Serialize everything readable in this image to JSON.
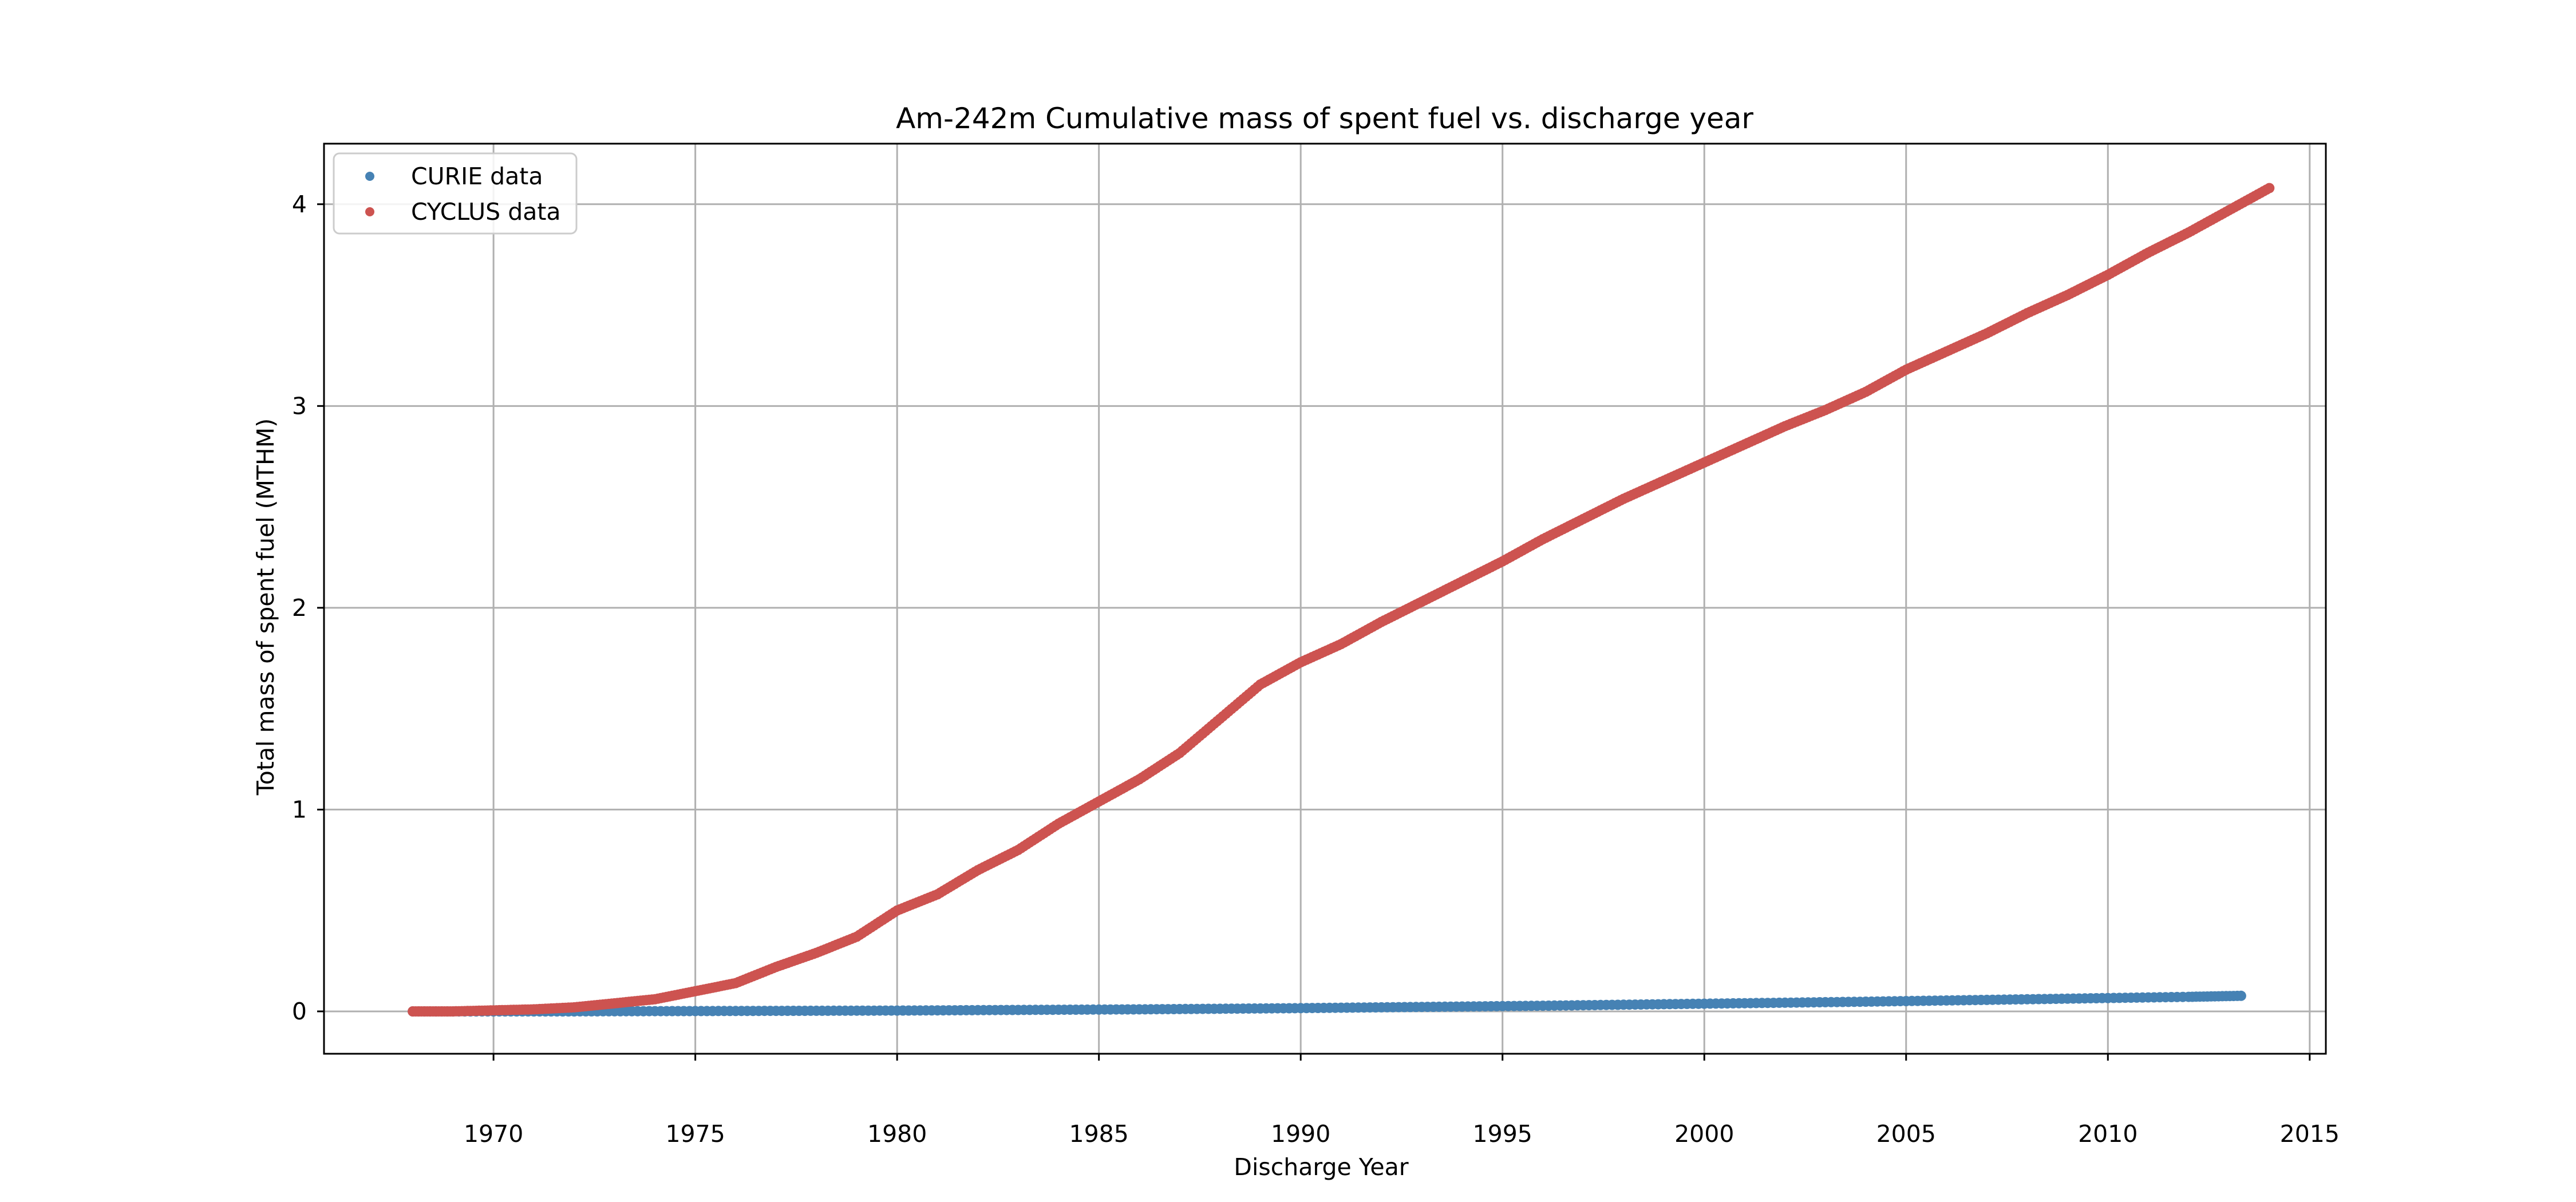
{
  "chart_data": {
    "type": "scatter",
    "title": "Am-242m Cumulative mass of spent fuel vs. discharge year",
    "xlabel": "Discharge Year",
    "ylabel": "Total mass of spent fuel (MTHM)",
    "xlim": [
      1965.8,
      2015.4
    ],
    "ylim": [
      -0.21,
      4.3
    ],
    "xticks": [
      1970,
      1975,
      1980,
      1985,
      1990,
      1995,
      2000,
      2005,
      2010,
      2015
    ],
    "xtick_labels": [
      "1970",
      "1975",
      "1980",
      "1985",
      "1990",
      "1995",
      "2000",
      "2005",
      "2010",
      "2015"
    ],
    "yticks": [
      0,
      1,
      2,
      3,
      4
    ],
    "ytick_labels": [
      "0",
      "1",
      "2",
      "3",
      "4"
    ],
    "grid": true,
    "legend_position": "top-left",
    "series": [
      {
        "name": "CURIE data",
        "color": "#4682b4",
        "x": [
          1968.0,
          1970.0,
          1972.0,
          1974.0,
          1976.0,
          1978.0,
          1980.0,
          1982.0,
          1984.0,
          1986.0,
          1988.0,
          1990.0,
          1992.0,
          1994.0,
          1996.0,
          1998.0,
          2000.0,
          2002.0,
          2004.0,
          2006.0,
          2008.0,
          2010.0,
          2012.0,
          2013.3
        ],
        "y": [
          0.0,
          0.0,
          0.0,
          0.001,
          0.002,
          0.003,
          0.004,
          0.006,
          0.008,
          0.01,
          0.013,
          0.016,
          0.02,
          0.024,
          0.028,
          0.033,
          0.038,
          0.043,
          0.048,
          0.054,
          0.06,
          0.066,
          0.072,
          0.077
        ]
      },
      {
        "name": "CYCLUS data",
        "color": "#cd5350",
        "x": [
          1968.0,
          1969.0,
          1970.0,
          1971.0,
          1972.0,
          1973.0,
          1974.0,
          1975.0,
          1976.0,
          1977.0,
          1978.0,
          1979.0,
          1980.0,
          1981.0,
          1982.0,
          1983.0,
          1984.0,
          1985.0,
          1986.0,
          1987.0,
          1988.0,
          1989.0,
          1990.0,
          1991.0,
          1992.0,
          1993.0,
          1994.0,
          1995.0,
          1996.0,
          1997.0,
          1998.0,
          1999.0,
          2000.0,
          2001.0,
          2002.0,
          2003.0,
          2004.0,
          2005.0,
          2006.0,
          2007.0,
          2008.0,
          2009.0,
          2010.0,
          2011.0,
          2012.0,
          2013.0,
          2014.0
        ],
        "y": [
          0.0,
          0.0,
          0.005,
          0.01,
          0.02,
          0.04,
          0.06,
          0.1,
          0.14,
          0.22,
          0.29,
          0.37,
          0.5,
          0.58,
          0.7,
          0.8,
          0.93,
          1.04,
          1.15,
          1.28,
          1.45,
          1.62,
          1.73,
          1.82,
          1.93,
          2.03,
          2.13,
          2.23,
          2.34,
          2.44,
          2.54,
          2.63,
          2.72,
          2.81,
          2.9,
          2.98,
          3.07,
          3.18,
          3.27,
          3.36,
          3.46,
          3.55,
          3.65,
          3.76,
          3.86,
          3.97,
          4.08
        ]
      }
    ]
  }
}
